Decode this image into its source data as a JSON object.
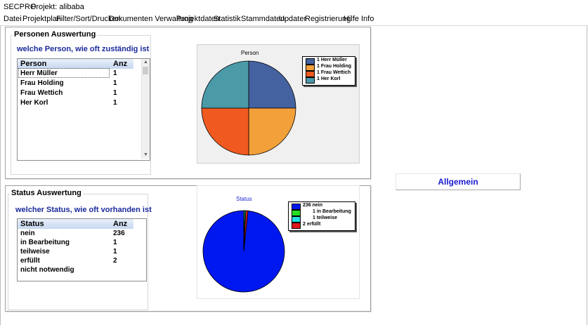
{
  "titlebar": {
    "app": "SECPRO",
    "project": "Projekt:  alibaba"
  },
  "menu": [
    "Datei",
    "Projektplan",
    "Filter/Sort/Drucken",
    "Dokumenten Verwaltung",
    "Projektdaten",
    "Statistik",
    "Stammdaten",
    "Updater",
    "Registrierung",
    "Hilfe",
    "Info"
  ],
  "persons": {
    "panel_title": "Personen Auswertung",
    "subtitle": "welche Person, wie oft zuständig ist",
    "columns": [
      "Person",
      "Anz"
    ],
    "rows": [
      {
        "name": "Herr Müller",
        "count": "1"
      },
      {
        "name": "Frau Holding",
        "count": "1"
      },
      {
        "name": "Frau Wettich",
        "count": "1"
      },
      {
        "name": "Her Korl",
        "count": "1"
      }
    ]
  },
  "status": {
    "panel_title": "Status Auswertung",
    "subtitle": "welcher Status, wie oft vorhanden ist",
    "columns": [
      "Status",
      "Anz"
    ],
    "rows": [
      {
        "name": "nein",
        "count": "236"
      },
      {
        "name": "in Bearbeitung",
        "count": "1"
      },
      {
        "name": "teilweise",
        "count": "1"
      },
      {
        "name": "erfüllt",
        "count": "2"
      },
      {
        "name": "nicht notwendig",
        "count": ""
      }
    ]
  },
  "allgemein_label": "Allgemein",
  "chart_data": [
    {
      "type": "pie",
      "title": "Person",
      "categories": [
        "Herr Müller",
        "Frau Holding",
        "Frau Wettich",
        "Her Korl"
      ],
      "values": [
        1,
        1,
        1,
        1
      ],
      "legend": [
        "1 Herr Müller",
        "1 Frau Holding",
        "1 Frau Wettich",
        "1 Her Korl"
      ],
      "colors": [
        "#4462a0",
        "#f2a03a",
        "#f05a20",
        "#4a9aa8"
      ],
      "start_angle_deg": 90,
      "legend_position": "top-right"
    },
    {
      "type": "pie",
      "title": "Status",
      "categories": [
        "nein",
        "in Bearbeitung",
        "teilweise",
        "erfüllt"
      ],
      "values": [
        236,
        1,
        1,
        2
      ],
      "legend": [
        "236 nein",
        "1 in Bearbeitung",
        "1 teilweise",
        "2 erfüllt"
      ],
      "colors": [
        "#0018f0",
        "#24e024",
        "#20e0e0",
        "#e01818"
      ],
      "start_angle_deg": 84,
      "legend_position": "top-right"
    }
  ]
}
